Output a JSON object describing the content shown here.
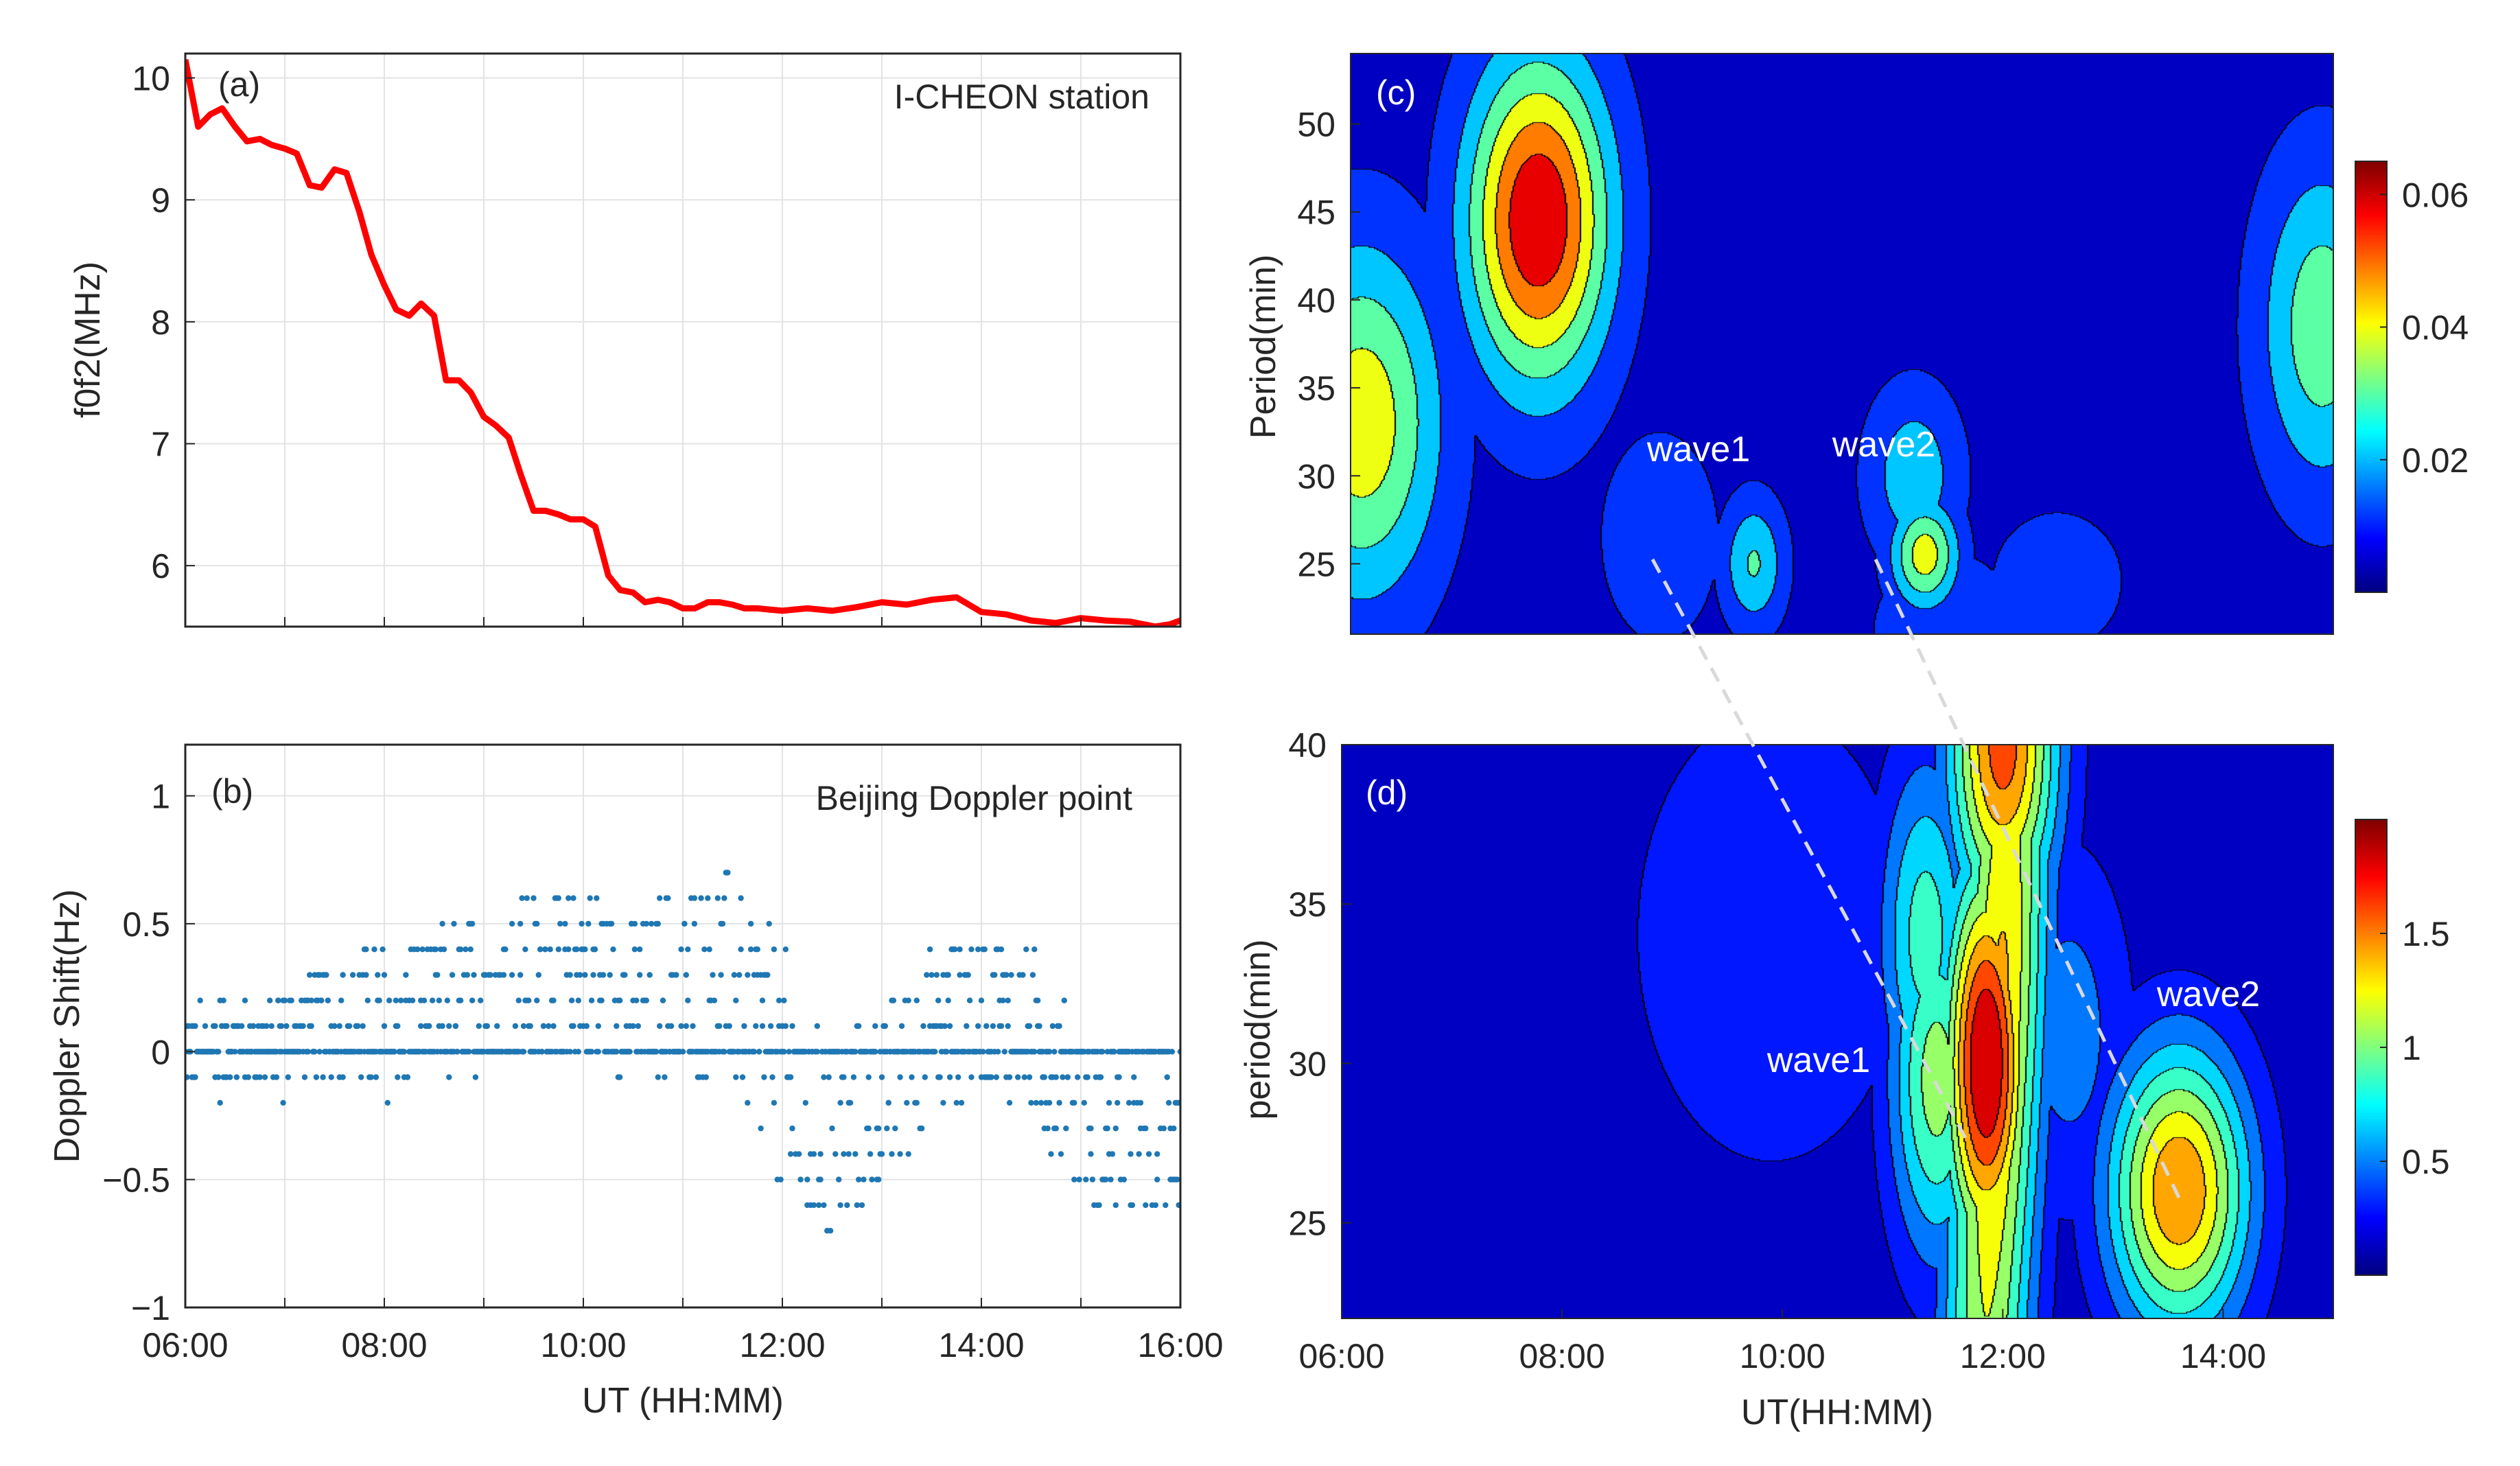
{
  "chart_data": [
    {
      "panel": "(a)",
      "type": "line",
      "annotation": "I-CHEON station",
      "xlabel": "",
      "ylabel": "f0f2(MHz)",
      "xlim": [
        6,
        16
      ],
      "ylim": [
        5.5,
        10.2
      ],
      "yticks": [
        "6",
        "7",
        "8",
        "9",
        "10"
      ],
      "color": "#ff0000",
      "series": [
        {
          "name": "f0f2",
          "x": [
            6.0,
            6.13,
            6.25,
            6.37,
            6.5,
            6.62,
            6.75,
            6.87,
            7.0,
            7.12,
            7.25,
            7.37,
            7.5,
            7.62,
            7.75,
            7.87,
            8.0,
            8.12,
            8.25,
            8.37,
            8.5,
            8.62,
            8.75,
            8.87,
            9.0,
            9.12,
            9.25,
            9.37,
            9.5,
            9.62,
            9.75,
            9.87,
            10.0,
            10.12,
            10.25,
            10.37,
            10.5,
            10.62,
            10.75,
            10.87,
            11.0,
            11.12,
            11.25,
            11.37,
            11.5,
            11.62,
            11.75,
            11.87,
            12.0,
            12.12,
            12.25,
            12.5,
            12.75,
            13.0,
            13.25,
            13.5,
            13.75,
            14.0,
            14.25,
            14.5,
            14.75,
            15.0,
            15.25,
            15.5,
            15.75,
            15.9,
            16.0
          ],
          "values": [
            10.15,
            9.6,
            9.7,
            9.75,
            9.6,
            9.48,
            9.5,
            9.45,
            9.42,
            9.38,
            9.12,
            9.1,
            9.25,
            9.22,
            8.9,
            8.55,
            8.3,
            8.1,
            8.05,
            8.15,
            8.05,
            7.52,
            7.52,
            7.42,
            7.22,
            7.15,
            7.05,
            6.75,
            6.45,
            6.45,
            6.42,
            6.38,
            6.38,
            6.32,
            5.92,
            5.8,
            5.78,
            5.7,
            5.72,
            5.7,
            5.65,
            5.65,
            5.7,
            5.7,
            5.68,
            5.65,
            5.65,
            5.64,
            5.63,
            5.64,
            5.65,
            5.63,
            5.66,
            5.7,
            5.68,
            5.72,
            5.74,
            5.62,
            5.6,
            5.55,
            5.53,
            5.57,
            5.55,
            5.54,
            5.5,
            5.52,
            5.55
          ]
        }
      ]
    },
    {
      "panel": "(b)",
      "type": "scatter",
      "annotation": "Beijing Doppler point",
      "xlabel": "UT (HH:MM)",
      "ylabel": "Doppler Shift(Hz)",
      "xlim": [
        6,
        16
      ],
      "ylim": [
        -1,
        1.2
      ],
      "xticks": [
        "06:00",
        "08:00",
        "10:00",
        "12:00",
        "14:00",
        "16:00"
      ],
      "yticks": [
        "1",
        "0.5",
        "0",
        "−0.5",
        "−1"
      ],
      "color": "#1f77b4",
      "sampling_interval_hz": 0.1,
      "trend_x": [
        6.0,
        6.5,
        7.0,
        7.5,
        8.0,
        8.5,
        9.0,
        9.5,
        10.0,
        10.5,
        11.0,
        11.5,
        12.0,
        12.25,
        12.5,
        13.0,
        13.5,
        14.0,
        14.5,
        15.0,
        15.5,
        16.0
      ],
      "trend_y": [
        0.0,
        0.03,
        0.06,
        0.1,
        0.12,
        0.15,
        0.25,
        0.33,
        0.33,
        0.2,
        0.3,
        0.28,
        -0.1,
        -0.3,
        -0.35,
        -0.2,
        0.05,
        0.18,
        0.1,
        -0.25,
        -0.32,
        -0.25
      ],
      "spread_x": [
        6.0,
        8.0,
        10.0,
        11.5,
        12.0,
        12.3,
        13.0,
        14.0,
        15.0,
        16.0
      ],
      "spread_y": [
        0.15,
        0.3,
        0.3,
        0.4,
        0.5,
        0.45,
        0.35,
        0.3,
        0.35,
        0.35
      ]
    },
    {
      "panel": "(c)",
      "type": "heatmap",
      "ylabel": "Period(min)",
      "xlim": [
        6.1,
        15.0
      ],
      "ylim": [
        21,
        54
      ],
      "yticks": [
        "25",
        "30",
        "35",
        "40",
        "45",
        "50"
      ],
      "colorbar_ticks": [
        "0.02",
        "0.04",
        "0.06"
      ],
      "colorbar_range": [
        0.0,
        0.065
      ],
      "wave_labels": [
        "wave1",
        "wave2"
      ],
      "peaks": [
        {
          "x": 7.8,
          "y": 44.5,
          "value": 0.065
        },
        {
          "x": 6.2,
          "y": 33,
          "value": 0.042
        },
        {
          "x": 14.9,
          "y": 38.5,
          "value": 0.032
        },
        {
          "x": 11.3,
          "y": 25.5,
          "value": 0.04
        },
        {
          "x": 9.75,
          "y": 25,
          "value": 0.026
        },
        {
          "x": 11.2,
          "y": 30,
          "value": 0.022
        },
        {
          "x": 8.9,
          "y": 26.5,
          "value": 0.012
        },
        {
          "x": 11.5,
          "y": 21,
          "value": 0.012
        },
        {
          "x": 12.5,
          "y": 24,
          "value": 0.008
        }
      ]
    },
    {
      "panel": "(d)",
      "type": "heatmap",
      "xlabel": "UT(HH:MM)",
      "ylabel": "period(min)",
      "xlim": [
        6.0,
        15.0
      ],
      "ylim": [
        22,
        40
      ],
      "xticks": [
        "06:00",
        "08:00",
        "10:00",
        "12:00",
        "14:00"
      ],
      "yticks": [
        "25",
        "30",
        "35",
        "40"
      ],
      "colorbar_ticks": [
        "0.5",
        "1",
        "1.5"
      ],
      "colorbar_range": [
        0.0,
        2.0
      ],
      "wave_labels": [
        "wave1",
        "wave2"
      ],
      "peaks": [
        {
          "x": 11.85,
          "y": 30,
          "value": 2.0
        },
        {
          "x": 12.0,
          "y": 40,
          "value": 1.65
        },
        {
          "x": 13.6,
          "y": 26,
          "value": 1.55
        },
        {
          "x": 11.4,
          "y": 29.5,
          "value": 1.05
        },
        {
          "x": 11.3,
          "y": 34,
          "value": 0.85
        },
        {
          "x": 12.6,
          "y": 31,
          "value": 0.45
        },
        {
          "x": 9.9,
          "y": 34,
          "value": 0.25
        }
      ]
    }
  ]
}
